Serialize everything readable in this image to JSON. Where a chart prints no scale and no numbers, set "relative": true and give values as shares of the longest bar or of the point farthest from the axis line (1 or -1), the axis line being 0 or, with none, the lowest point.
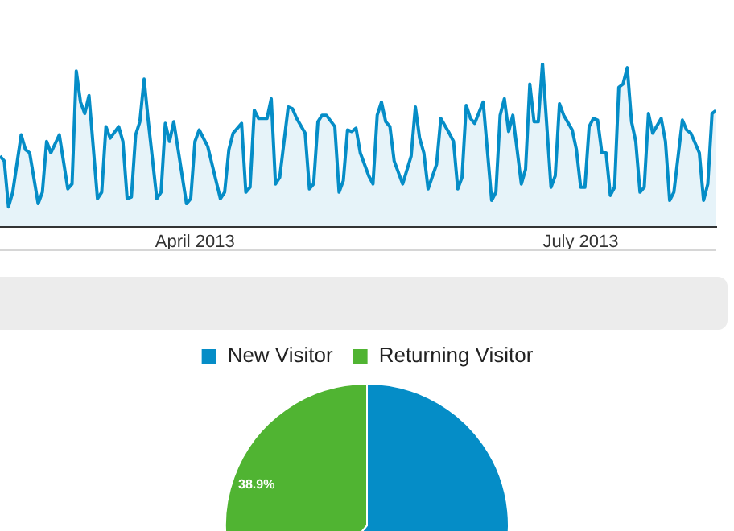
{
  "chart_data": [
    {
      "type": "area",
      "relative": true,
      "color": "#058dc7",
      "x": [
        "2013-02-14",
        "2013-02-15",
        "2013-02-16",
        "2013-02-17",
        "2013-02-19",
        "2013-02-20",
        "2013-02-21",
        "2013-02-23",
        "2013-02-24",
        "2013-02-25",
        "2013-02-26",
        "2013-02-28",
        "2013-03-02",
        "2013-03-03",
        "2013-03-04",
        "2013-03-05",
        "2013-03-06",
        "2013-03-07",
        "2013-03-09",
        "2013-03-10",
        "2013-03-11",
        "2013-03-12",
        "2013-03-14",
        "2013-03-15",
        "2013-03-16",
        "2013-03-17",
        "2013-03-18",
        "2013-03-19",
        "2013-03-20",
        "2013-03-21",
        "2013-03-23",
        "2013-03-24",
        "2013-03-25",
        "2013-03-26",
        "2013-03-27",
        "2013-03-30",
        "2013-03-31",
        "2013-04-01",
        "2013-04-02",
        "2013-04-04",
        "2013-04-07",
        "2013-04-08",
        "2013-04-09",
        "2013-04-10",
        "2013-04-12",
        "2013-04-13",
        "2013-04-14",
        "2013-04-15",
        "2013-04-16",
        "2013-04-18",
        "2013-04-19",
        "2013-04-20",
        "2013-04-21",
        "2013-04-23",
        "2013-04-24",
        "2013-04-25",
        "2013-04-27",
        "2013-04-28",
        "2013-04-29",
        "2013-04-30",
        "2013-05-01",
        "2013-05-02",
        "2013-05-04",
        "2013-05-05",
        "2013-05-06",
        "2013-05-07",
        "2013-05-08",
        "2013-05-09",
        "2013-05-10",
        "2013-05-12",
        "2013-05-13",
        "2013-05-14",
        "2013-05-15",
        "2013-05-16",
        "2013-05-17",
        "2013-05-18",
        "2013-05-20",
        "2013-05-22",
        "2013-05-23",
        "2013-05-24",
        "2013-05-25",
        "2013-05-26",
        "2013-05-28",
        "2013-05-29",
        "2013-05-31",
        "2013-06-01",
        "2013-06-02",
        "2013-06-03",
        "2013-06-04",
        "2013-06-05",
        "2013-06-06",
        "2013-06-08",
        "2013-06-10",
        "2013-06-11",
        "2013-06-12",
        "2013-06-13",
        "2013-06-14",
        "2013-06-15",
        "2013-06-17",
        "2013-06-18",
        "2013-06-19",
        "2013-06-20",
        "2013-06-21",
        "2013-06-22",
        "2013-06-24",
        "2013-06-25",
        "2013-06-26",
        "2013-06-27",
        "2013-06-29",
        "2013-06-30",
        "2013-07-01",
        "2013-07-02",
        "2013-07-03",
        "2013-07-04",
        "2013-07-05",
        "2013-07-06",
        "2013-07-07",
        "2013-07-08",
        "2013-07-09",
        "2013-07-10",
        "2013-07-11",
        "2013-07-12",
        "2013-07-13",
        "2013-07-14",
        "2013-07-15",
        "2013-07-16",
        "2013-07-17",
        "2013-07-18",
        "2013-07-20",
        "2013-07-21",
        "2013-07-22",
        "2013-07-23",
        "2013-07-25",
        "2013-07-26",
        "2013-07-27",
        "2013-07-29",
        "2013-07-30",
        "2013-07-31",
        "2013-08-01",
        "2013-08-02"
      ],
      "values": [
        0.43,
        0.4,
        0.12,
        0.21,
        0.56,
        0.47,
        0.45,
        0.14,
        0.21,
        0.52,
        0.45,
        0.56,
        0.23,
        0.26,
        0.95,
        0.76,
        0.69,
        0.8,
        0.17,
        0.21,
        0.61,
        0.54,
        0.61,
        0.52,
        0.17,
        0.18,
        0.56,
        0.64,
        0.9,
        0.64,
        0.17,
        0.21,
        0.63,
        0.52,
        0.64,
        0.14,
        0.17,
        0.52,
        0.59,
        0.49,
        0.17,
        0.21,
        0.47,
        0.57,
        0.63,
        0.21,
        0.24,
        0.71,
        0.66,
        0.66,
        0.78,
        0.26,
        0.3,
        0.73,
        0.72,
        0.66,
        0.57,
        0.23,
        0.26,
        0.64,
        0.68,
        0.68,
        0.61,
        0.21,
        0.28,
        0.59,
        0.58,
        0.6,
        0.45,
        0.31,
        0.26,
        0.68,
        0.76,
        0.64,
        0.61,
        0.4,
        0.26,
        0.43,
        0.73,
        0.54,
        0.45,
        0.23,
        0.38,
        0.66,
        0.57,
        0.52,
        0.23,
        0.3,
        0.74,
        0.66,
        0.63,
        0.76,
        0.16,
        0.21,
        0.68,
        0.78,
        0.58,
        0.68,
        0.26,
        0.35,
        0.87,
        0.64,
        0.64,
        1.0,
        0.24,
        0.31,
        0.75,
        0.68,
        0.59,
        0.47,
        0.24,
        0.24,
        0.61,
        0.66,
        0.65,
        0.45,
        0.45,
        0.19,
        0.24,
        0.85,
        0.87,
        0.97,
        0.64,
        0.52,
        0.21,
        0.24,
        0.69,
        0.57,
        0.66,
        0.52,
        0.16,
        0.21,
        0.65,
        0.59,
        0.57,
        0.45,
        0.16,
        0.26,
        0.69,
        0.71
      ],
      "xlim": [
        "2013-02-14",
        "2013-08-02"
      ],
      "xticks": [
        {
          "value": "2013-04-01",
          "label": "April 2013"
        },
        {
          "value": "2013-07-01",
          "label": "July 2013"
        }
      ]
    },
    {
      "type": "pie",
      "categories": [
        "New Visitor",
        "Returning Visitor"
      ],
      "values": [
        61.1,
        38.9
      ],
      "colors": [
        "#058dc7",
        "#50b432"
      ],
      "value_labels": [
        null,
        "38.9%"
      ],
      "legend": "top"
    }
  ]
}
